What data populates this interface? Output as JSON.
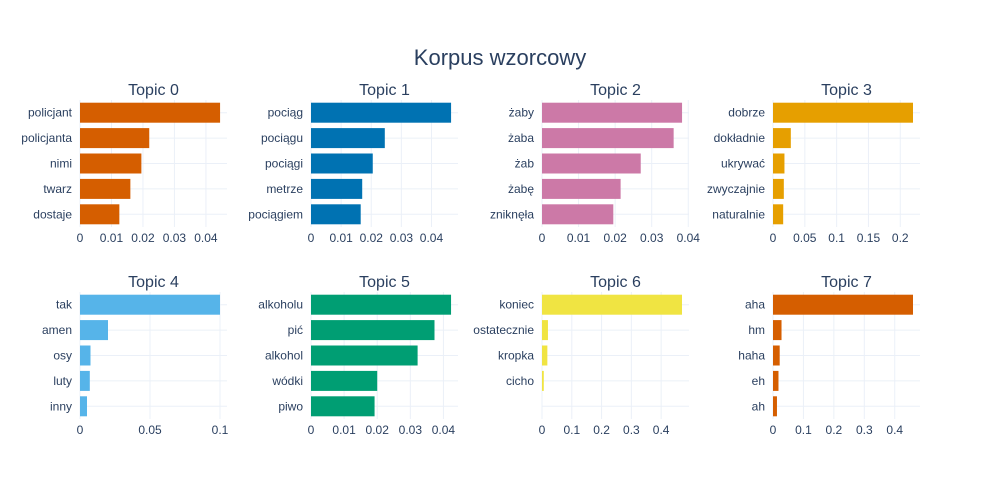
{
  "title": "Korpus wzorcowy",
  "chart_data": [
    {
      "type": "bar",
      "orientation": "horizontal",
      "title": "Topic 0",
      "color": "#D55E00",
      "categories": [
        "policjant",
        "policjanta",
        "nimi",
        "twarz",
        "dostaje"
      ],
      "values": [
        0.0445,
        0.022,
        0.0195,
        0.016,
        0.0125
      ],
      "xlim": [
        0,
        0.0467
      ],
      "xticks": [
        0,
        0.01,
        0.02,
        0.03,
        0.04
      ],
      "xtick_labels": [
        "0",
        "0.01",
        "0.02",
        "0.03",
        "0.04"
      ]
    },
    {
      "type": "bar",
      "orientation": "horizontal",
      "title": "Topic 1",
      "color": "#0072B2",
      "categories": [
        "pociąg",
        "pociągu",
        "pociągi",
        "metrze",
        "pociągiem"
      ],
      "values": [
        0.0465,
        0.0245,
        0.0205,
        0.017,
        0.0165
      ],
      "xlim": [
        0,
        0.0488
      ],
      "xticks": [
        0,
        0.01,
        0.02,
        0.03,
        0.04
      ],
      "xtick_labels": [
        "0",
        "0.01",
        "0.02",
        "0.03",
        "0.04"
      ]
    },
    {
      "type": "bar",
      "orientation": "horizontal",
      "title": "Topic 2",
      "color": "#CC79A7",
      "categories": [
        "żaby",
        "żaba",
        "żab",
        "żabę",
        "zniknęła"
      ],
      "values": [
        0.0383,
        0.036,
        0.027,
        0.0215,
        0.0195
      ],
      "xlim": [
        0,
        0.0402
      ],
      "xticks": [
        0,
        0.01,
        0.02,
        0.03,
        0.04
      ],
      "xtick_labels": [
        "0",
        "0.01",
        "0.02",
        "0.03",
        "0.04"
      ]
    },
    {
      "type": "bar",
      "orientation": "horizontal",
      "title": "Topic 3",
      "color": "#E69F00",
      "categories": [
        "dobrze",
        "dokładnie",
        "ukrywać",
        "zwyczajnie",
        "naturalnie"
      ],
      "values": [
        0.22,
        0.028,
        0.018,
        0.017,
        0.016
      ],
      "xlim": [
        0,
        0.231
      ],
      "xticks": [
        0,
        0.05,
        0.1,
        0.15,
        0.2
      ],
      "xtick_labels": [
        "0",
        "0.05",
        "0.1",
        "0.15",
        "0.2"
      ]
    },
    {
      "type": "bar",
      "orientation": "horizontal",
      "title": "Topic 4",
      "color": "#56B4E9",
      "categories": [
        "tak",
        "amen",
        "osy",
        "luty",
        "inny"
      ],
      "values": [
        0.1,
        0.02,
        0.0075,
        0.007,
        0.005
      ],
      "xlim": [
        0,
        0.105
      ],
      "xticks": [
        0,
        0.05,
        0.1
      ],
      "xtick_labels": [
        "0",
        "0.05",
        "0.1"
      ]
    },
    {
      "type": "bar",
      "orientation": "horizontal",
      "title": "Topic 5",
      "color": "#009E73",
      "categories": [
        "alkoholu",
        "pić",
        "alkohol",
        "wódki",
        "piwo"
      ],
      "values": [
        0.0423,
        0.0373,
        0.0322,
        0.02,
        0.0192
      ],
      "xlim": [
        0,
        0.0444
      ],
      "xticks": [
        0,
        0.01,
        0.02,
        0.03,
        0.04
      ],
      "xtick_labels": [
        "0",
        "0.01",
        "0.02",
        "0.03",
        "0.04"
      ]
    },
    {
      "type": "bar",
      "orientation": "horizontal",
      "title": "Topic 6",
      "color": "#F0E442",
      "categories": [
        "koniec",
        "ostatecznie",
        "kropka",
        "cicho"
      ],
      "values": [
        0.47,
        0.02,
        0.018,
        0.006
      ],
      "xlim": [
        0,
        0.4935
      ],
      "xticks": [
        0,
        0.1,
        0.2,
        0.3,
        0.4
      ],
      "xtick_labels": [
        "0",
        "0.1",
        "0.2",
        "0.3",
        "0.4"
      ]
    },
    {
      "type": "bar",
      "orientation": "horizontal",
      "title": "Topic 7",
      "color": "#D55E00",
      "categories": [
        "aha",
        "hm",
        "haha",
        "eh",
        "ah"
      ],
      "values": [
        0.46,
        0.028,
        0.022,
        0.018,
        0.013
      ],
      "xlim": [
        0,
        0.483
      ],
      "xticks": [
        0,
        0.1,
        0.2,
        0.3,
        0.4
      ],
      "xtick_labels": [
        "0",
        "0.1",
        "0.2",
        "0.3",
        "0.4"
      ]
    }
  ]
}
